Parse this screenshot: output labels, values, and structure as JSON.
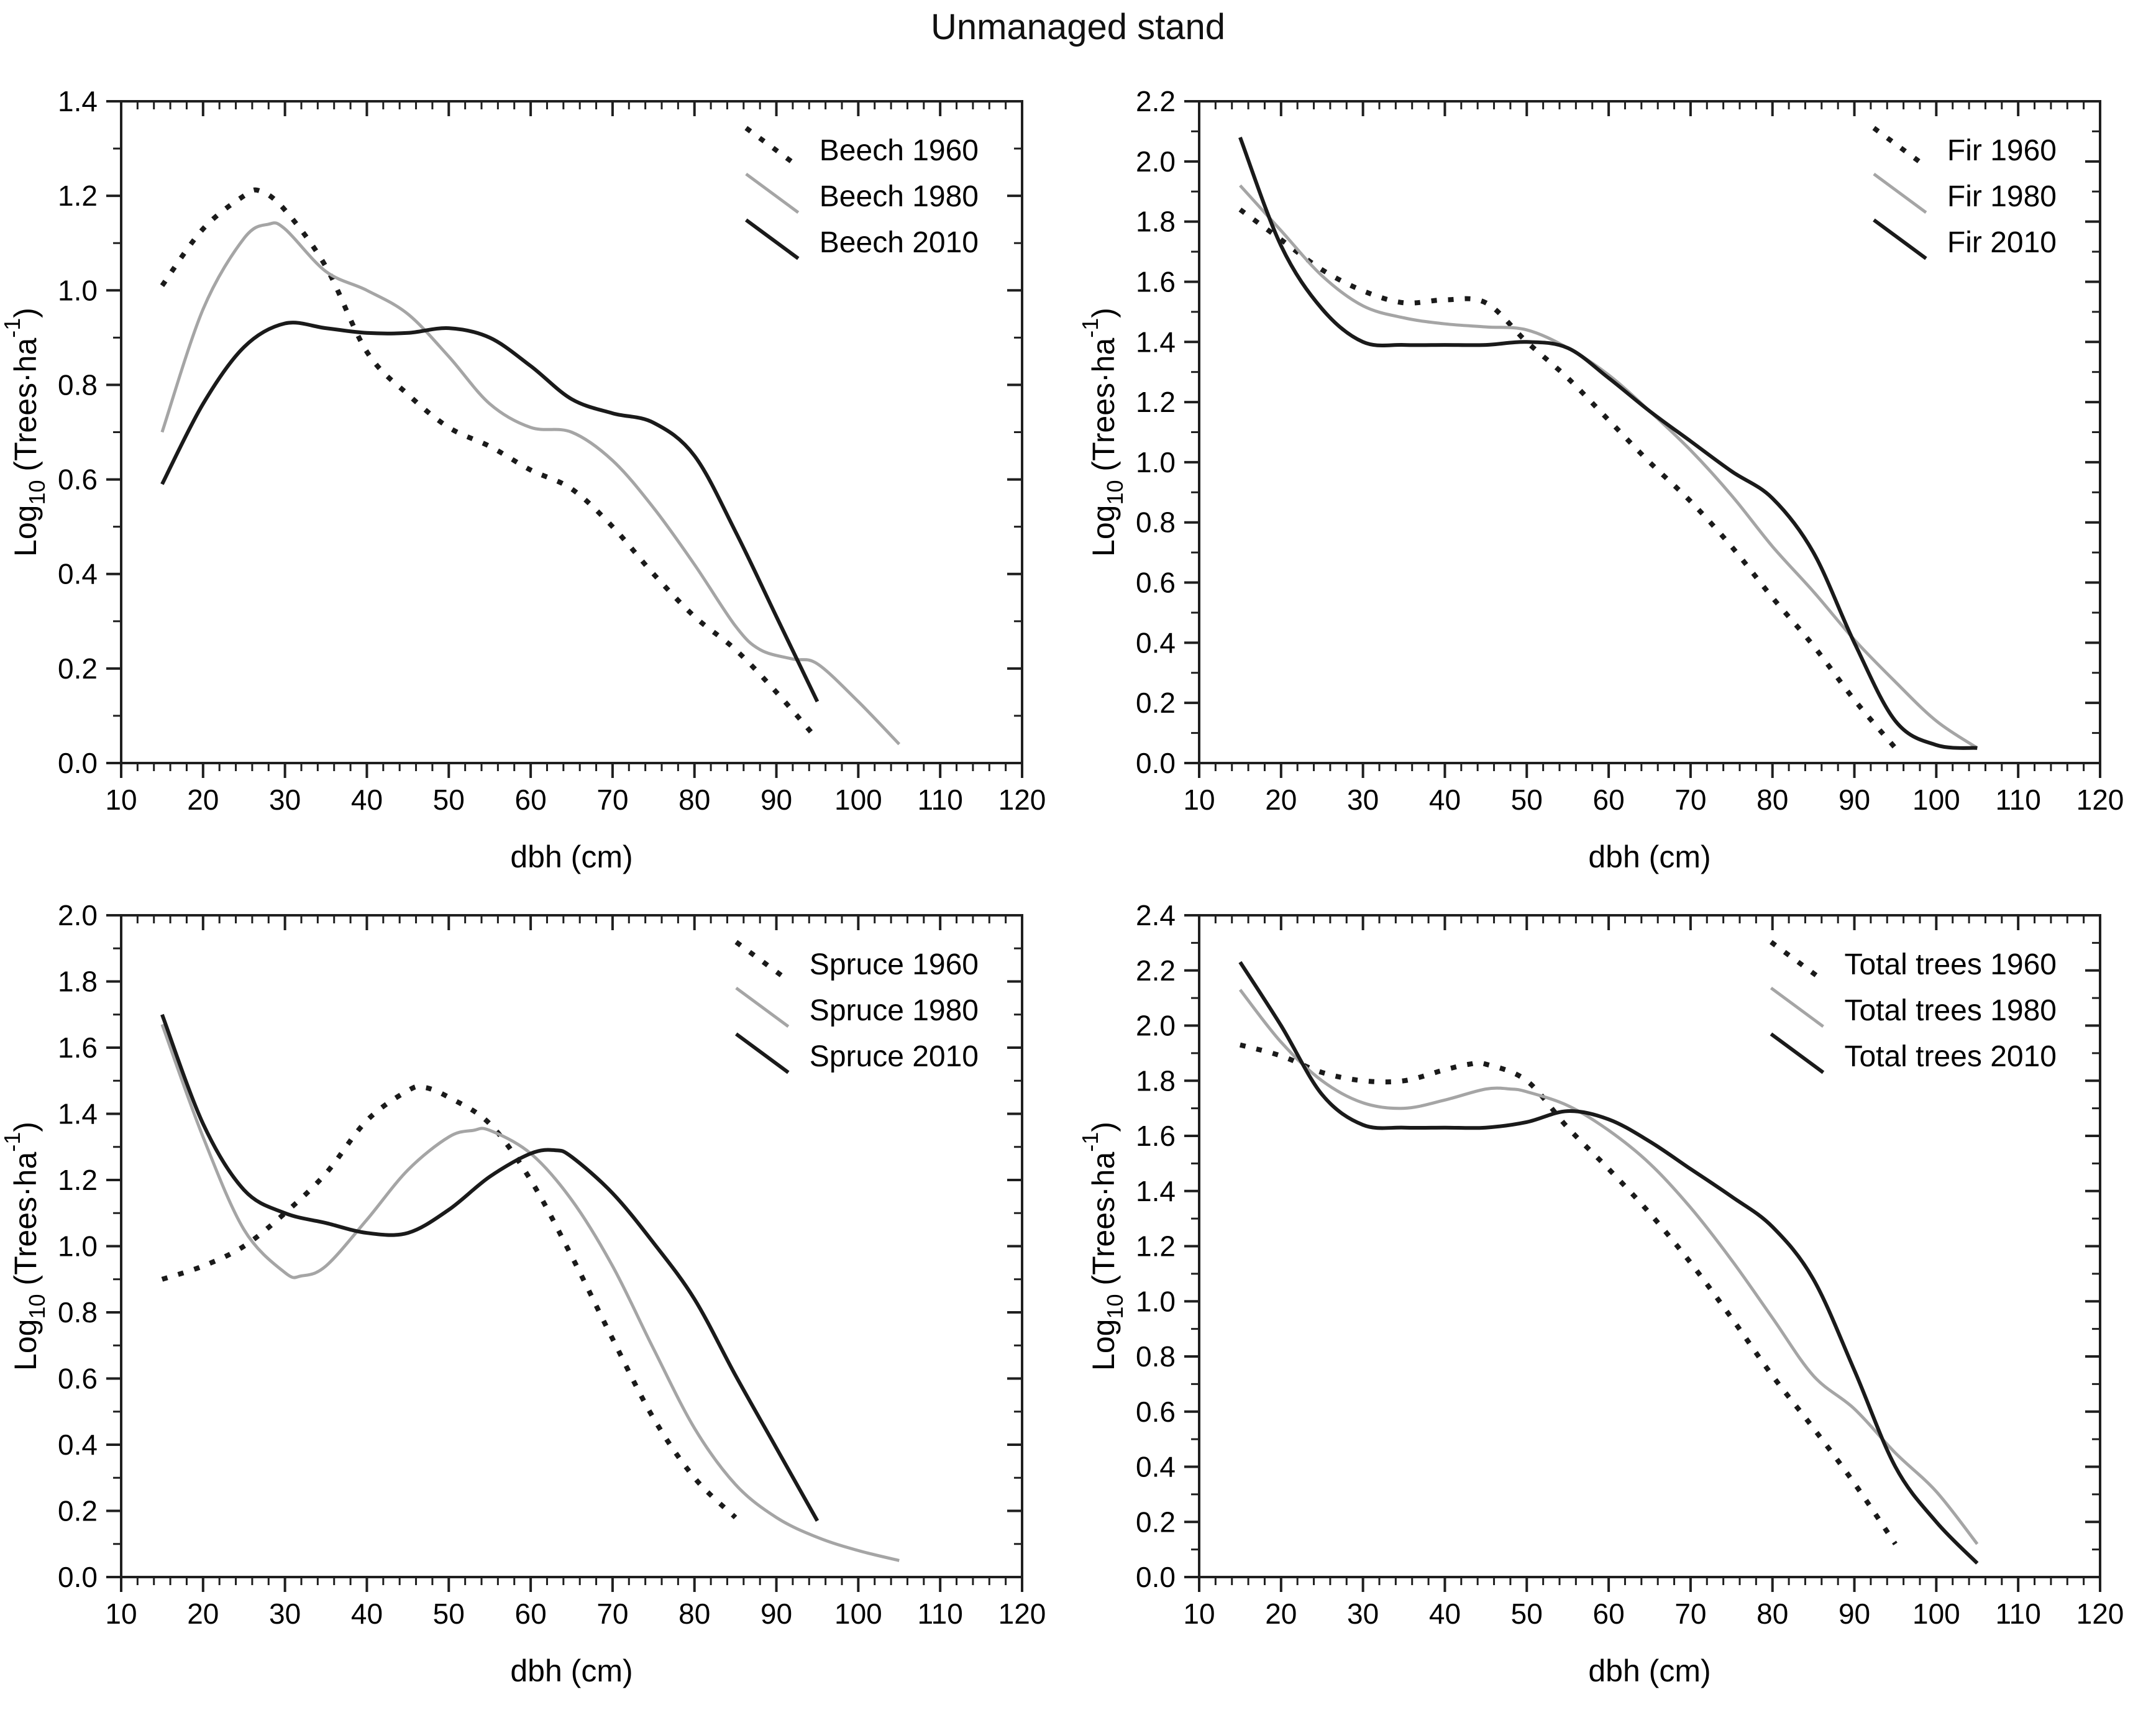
{
  "title": "Unmanaged stand",
  "colors": {
    "line_black": "#1a1a1a",
    "line_gray": "#a5a5a5",
    "axis": "#1f1f1f",
    "text": "#000000"
  },
  "ylabel_rich": [
    {
      "t": "Log",
      "s": "n"
    },
    {
      "t": "10",
      "s": "sub"
    },
    {
      "t": " (Trees·ha",
      "s": "n"
    },
    {
      "t": "-1",
      "s": "sup"
    },
    {
      "t": ")",
      "s": "n"
    }
  ],
  "chart_data": [
    {
      "type": "line",
      "name": "beech",
      "xlabel": "dbh (cm)",
      "ylabel": "Log10 (Trees·ha-1)",
      "xlim": [
        10,
        120
      ],
      "ylim": [
        0,
        1.4
      ],
      "x_major_step": 10,
      "x_minor_step": 2,
      "y_major_step": 0.2,
      "y_minor_step": 0.1,
      "grid": false,
      "legend_position": "top-right",
      "series": [
        {
          "label": "Beech 1960",
          "style": "dotted",
          "color": "black",
          "x": [
            15,
            20,
            25,
            27,
            30,
            35,
            40,
            45,
            50,
            55,
            60,
            65,
            70,
            75,
            80,
            85,
            90,
            95
          ],
          "y": [
            1.01,
            1.13,
            1.2,
            1.21,
            1.17,
            1.05,
            0.87,
            0.78,
            0.71,
            0.67,
            0.62,
            0.58,
            0.5,
            0.4,
            0.31,
            0.24,
            0.15,
            0.05
          ]
        },
        {
          "label": "Beech 1980",
          "style": "solid",
          "color": "gray",
          "x": [
            15,
            20,
            25,
            28,
            30,
            35,
            40,
            45,
            50,
            55,
            60,
            65,
            70,
            75,
            80,
            85,
            88,
            92,
            95,
            100,
            105
          ],
          "y": [
            0.7,
            0.96,
            1.11,
            1.14,
            1.13,
            1.04,
            1.0,
            0.95,
            0.86,
            0.76,
            0.71,
            0.7,
            0.64,
            0.54,
            0.42,
            0.29,
            0.24,
            0.22,
            0.21,
            0.13,
            0.04
          ]
        },
        {
          "label": "Beech 2010",
          "style": "solid",
          "color": "black",
          "x": [
            15,
            20,
            25,
            30,
            35,
            40,
            45,
            50,
            55,
            60,
            65,
            70,
            75,
            80,
            85,
            90,
            95
          ],
          "y": [
            0.59,
            0.76,
            0.88,
            0.93,
            0.92,
            0.91,
            0.91,
            0.92,
            0.9,
            0.84,
            0.77,
            0.74,
            0.72,
            0.65,
            0.49,
            0.31,
            0.13
          ]
        }
      ]
    },
    {
      "type": "line",
      "name": "fir",
      "xlabel": "dbh (cm)",
      "ylabel": "Log10 (Trees·ha-1)",
      "xlim": [
        10,
        120
      ],
      "ylim": [
        0,
        2.2
      ],
      "x_major_step": 10,
      "x_minor_step": 2,
      "y_major_step": 0.2,
      "y_minor_step": 0.1,
      "grid": false,
      "legend_position": "top-right",
      "series": [
        {
          "label": "Fir 1960",
          "style": "dotted",
          "color": "black",
          "x": [
            15,
            20,
            25,
            30,
            35,
            40,
            45,
            50,
            55,
            60,
            65,
            70,
            75,
            80,
            85,
            90,
            95
          ],
          "y": [
            1.84,
            1.74,
            1.64,
            1.57,
            1.53,
            1.54,
            1.53,
            1.4,
            1.28,
            1.14,
            1.0,
            0.87,
            0.72,
            0.55,
            0.39,
            0.21,
            0.05
          ]
        },
        {
          "label": "Fir 1980",
          "style": "solid",
          "color": "gray",
          "x": [
            15,
            20,
            25,
            30,
            35,
            40,
            45,
            50,
            55,
            60,
            65,
            70,
            75,
            80,
            85,
            90,
            95,
            100,
            105
          ],
          "y": [
            1.92,
            1.77,
            1.62,
            1.52,
            1.48,
            1.46,
            1.45,
            1.44,
            1.38,
            1.29,
            1.17,
            1.04,
            0.89,
            0.72,
            0.57,
            0.41,
            0.27,
            0.14,
            0.05
          ]
        },
        {
          "label": "Fir 2010",
          "style": "solid",
          "color": "black",
          "x": [
            15,
            20,
            25,
            30,
            35,
            40,
            45,
            50,
            55,
            60,
            65,
            70,
            75,
            80,
            85,
            90,
            95,
            100,
            105
          ],
          "y": [
            2.08,
            1.72,
            1.51,
            1.4,
            1.39,
            1.39,
            1.39,
            1.4,
            1.38,
            1.28,
            1.17,
            1.07,
            0.97,
            0.88,
            0.7,
            0.4,
            0.14,
            0.06,
            0.05
          ]
        }
      ]
    },
    {
      "type": "line",
      "name": "spruce",
      "xlabel": "dbh (cm)",
      "ylabel": "Log10 (Trees·ha-1)",
      "xlim": [
        10,
        120
      ],
      "ylim": [
        0,
        2.0
      ],
      "x_major_step": 10,
      "x_minor_step": 2,
      "y_major_step": 0.2,
      "y_minor_step": 0.1,
      "grid": false,
      "legend_position": "top-right",
      "series": [
        {
          "label": "Spruce 1960",
          "style": "dotted",
          "color": "black",
          "x": [
            15,
            20,
            25,
            30,
            35,
            40,
            45,
            47,
            50,
            55,
            60,
            65,
            70,
            75,
            80,
            85
          ],
          "y": [
            0.9,
            0.94,
            1.0,
            1.1,
            1.22,
            1.38,
            1.47,
            1.48,
            1.45,
            1.37,
            1.2,
            0.97,
            0.72,
            0.48,
            0.3,
            0.18
          ]
        },
        {
          "label": "Spruce 1980",
          "style": "solid",
          "color": "gray",
          "x": [
            15,
            20,
            25,
            30,
            32,
            35,
            40,
            45,
            50,
            53,
            55,
            60,
            65,
            70,
            75,
            80,
            85,
            90,
            95,
            100,
            105
          ],
          "y": [
            1.67,
            1.33,
            1.05,
            0.92,
            0.91,
            0.94,
            1.08,
            1.23,
            1.33,
            1.35,
            1.35,
            1.28,
            1.14,
            0.94,
            0.69,
            0.45,
            0.28,
            0.18,
            0.12,
            0.08,
            0.05
          ]
        },
        {
          "label": "Spruce 2010",
          "style": "solid",
          "color": "black",
          "x": [
            15,
            20,
            25,
            30,
            35,
            40,
            45,
            50,
            55,
            60,
            63,
            65,
            70,
            75,
            80,
            85,
            90,
            95
          ],
          "y": [
            1.7,
            1.37,
            1.17,
            1.1,
            1.07,
            1.04,
            1.04,
            1.11,
            1.21,
            1.28,
            1.29,
            1.27,
            1.16,
            1.01,
            0.84,
            0.61,
            0.39,
            0.17
          ]
        }
      ]
    },
    {
      "type": "line",
      "name": "total-trees",
      "xlabel": "dbh (cm)",
      "ylabel": "Log10 (Trees·ha-1)",
      "xlim": [
        10,
        120
      ],
      "ylim": [
        0,
        2.4
      ],
      "x_major_step": 10,
      "x_minor_step": 2,
      "y_major_step": 0.2,
      "y_minor_step": 0.1,
      "grid": false,
      "legend_position": "top-right",
      "series": [
        {
          "label": "Total trees 1960",
          "style": "dotted",
          "color": "black",
          "x": [
            15,
            20,
            25,
            30,
            35,
            40,
            43,
            45,
            50,
            55,
            60,
            65,
            70,
            75,
            80,
            85,
            90,
            95
          ],
          "y": [
            1.93,
            1.89,
            1.83,
            1.8,
            1.8,
            1.84,
            1.86,
            1.86,
            1.8,
            1.63,
            1.48,
            1.32,
            1.14,
            0.94,
            0.73,
            0.54,
            0.34,
            0.12
          ]
        },
        {
          "label": "Total trees 1980",
          "style": "solid",
          "color": "gray",
          "x": [
            15,
            20,
            25,
            30,
            35,
            40,
            45,
            48,
            50,
            55,
            60,
            65,
            70,
            75,
            80,
            85,
            90,
            95,
            100,
            105
          ],
          "y": [
            2.13,
            1.94,
            1.8,
            1.72,
            1.7,
            1.73,
            1.77,
            1.77,
            1.76,
            1.71,
            1.62,
            1.5,
            1.34,
            1.15,
            0.94,
            0.73,
            0.61,
            0.45,
            0.31,
            0.12
          ]
        },
        {
          "label": "Total trees 2010",
          "style": "solid",
          "color": "black",
          "x": [
            15,
            20,
            25,
            30,
            35,
            40,
            45,
            50,
            55,
            60,
            65,
            70,
            75,
            80,
            85,
            90,
            95,
            100,
            105
          ],
          "y": [
            2.23,
            2.0,
            1.75,
            1.64,
            1.63,
            1.63,
            1.63,
            1.65,
            1.69,
            1.66,
            1.58,
            1.48,
            1.38,
            1.27,
            1.08,
            0.75,
            0.4,
            0.2,
            0.05
          ]
        }
      ]
    }
  ]
}
